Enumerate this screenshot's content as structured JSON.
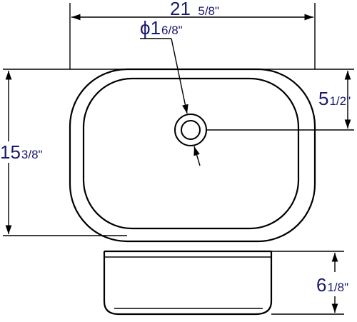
{
  "dimensions": {
    "width": {
      "whole": "21",
      "fraction": "5/8\""
    },
    "drain_diameter": {
      "symbol": "ϕ",
      "whole": "1",
      "fraction": "6/8\""
    },
    "drain_offset": {
      "whole": "5",
      "fraction": "1/2\""
    },
    "depth_length": {
      "whole": "15",
      "fraction": "3/8\""
    },
    "height": {
      "whole": "6",
      "fraction": "1/8\""
    }
  },
  "colors": {
    "line": "#000000",
    "text": "#1a1a6e"
  }
}
